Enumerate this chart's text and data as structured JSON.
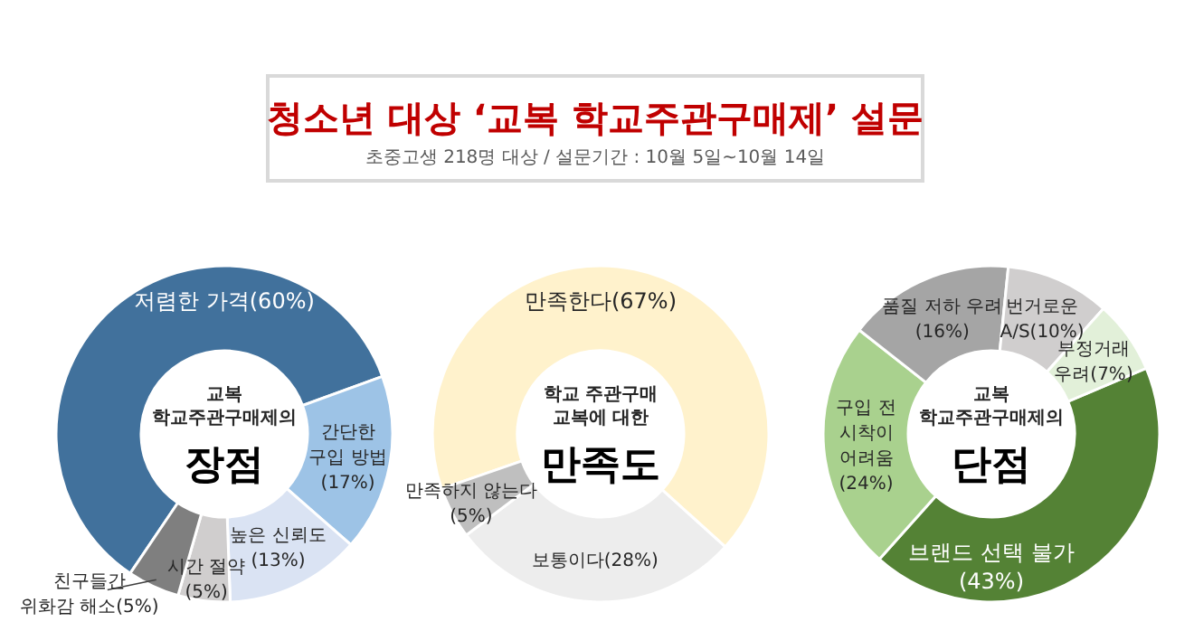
{
  "chart_data": [
    {
      "type": "other",
      "title": "청소년 대상 ‘교복 학교주관구매제’ 설문",
      "subtitle": "초중고생 218명 대상 / 설문기간 : 10월 5일~10월 14일"
    },
    {
      "type": "donut",
      "subtitle": "교복\n학교주관구매제의",
      "title": "장점",
      "categories": [
        "저렴한 가격",
        "간단한\n구입 방법\n",
        "높은 신뢰도\n",
        "시간 절약\n",
        "친구들간\n위화감 해소"
      ],
      "values": [
        60,
        17,
        13,
        5,
        5
      ],
      "value_labels": [
        "(60%)",
        "(17%)",
        "(13%)",
        "(5%)",
        "(5%)"
      ],
      "colors": [
        "#41719c",
        "#9dc3e6",
        "#dae3f3",
        "#d0cece",
        "#7f7f7f"
      ]
    },
    {
      "type": "donut",
      "subtitle": "학교 주관구매\n교복에 대한",
      "title": "만족도",
      "categories": [
        "만족한다",
        "보통이다",
        "만족하지 않는다\n"
      ],
      "values": [
        67,
        28,
        5
      ],
      "value_labels": [
        "(67%)",
        "(28%)",
        "(5%)"
      ],
      "colors": [
        "#fff2cc",
        "#ededed",
        "#bfbfbf"
      ]
    },
    {
      "type": "donut",
      "subtitle": "교복\n학교주관구매제의",
      "title": "단점",
      "categories": [
        "브랜드 선택 불가\n",
        "구입 전\n시착이\n어려움\n",
        "품질 저하 우려\n",
        "번거로운\nA/S",
        "부정거래\n우려"
      ],
      "values": [
        43,
        24,
        16,
        10,
        7
      ],
      "value_labels": [
        "(43%)",
        "(24%)",
        "(16%)",
        "(10%)",
        "(7%)"
      ],
      "colors": [
        "#548235",
        "#a9d18e",
        "#a5a5a5",
        "#d0cece",
        "#e2f0d9"
      ]
    }
  ]
}
